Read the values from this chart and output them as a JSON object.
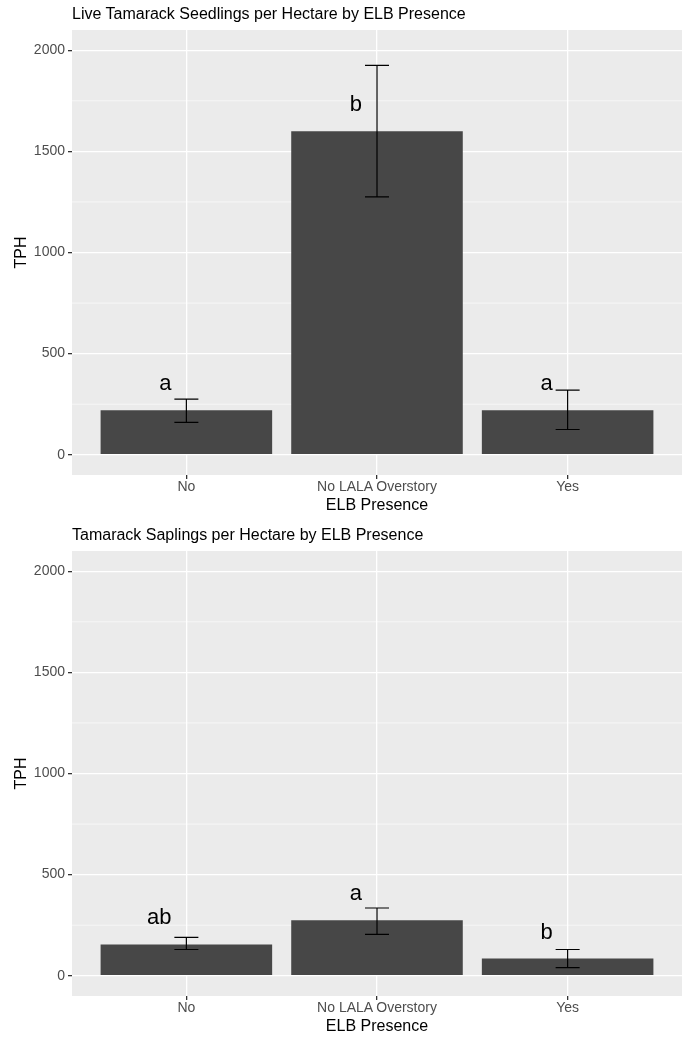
{
  "chart_data": [
    {
      "type": "bar",
      "title": "Live Tamarack Seedlings per Hectare by ELB Presence",
      "xlabel": "ELB Presence",
      "ylabel": "TPH",
      "categories": [
        "No",
        "No LALA Overstory",
        "Yes"
      ],
      "values": [
        220,
        1600,
        220
      ],
      "errors": [
        [
          160,
          275
        ],
        [
          1275,
          1925
        ],
        [
          125,
          320
        ]
      ],
      "color": "#474747",
      "ylim": [
        -100,
        2100
      ],
      "yticks": [
        0,
        500,
        1000,
        1500,
        2000
      ],
      "grid": true,
      "annotations": [
        "a",
        "b",
        "a"
      ]
    },
    {
      "type": "bar",
      "title": "Tamarack Saplings per Hectare by ELB Presence",
      "xlabel": "ELB Presence",
      "ylabel": "TPH",
      "categories": [
        "No",
        "No LALA Overstory",
        "Yes"
      ],
      "values": [
        155,
        275,
        85
      ],
      "errors": [
        [
          130,
          190
        ],
        [
          205,
          335
        ],
        [
          40,
          130
        ]
      ],
      "color": "#474747",
      "ylim": [
        -100,
        2100
      ],
      "yticks": [
        0,
        500,
        1000,
        1500,
        2000
      ],
      "grid": true,
      "annotations": [
        "ab",
        "a",
        "b"
      ]
    }
  ]
}
